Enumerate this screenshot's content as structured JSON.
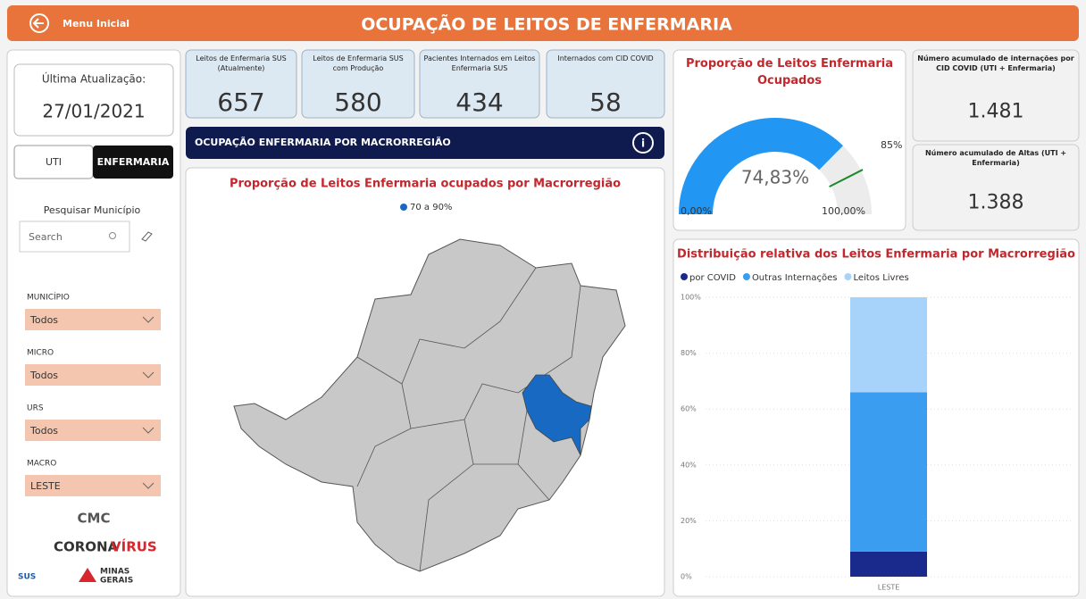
{
  "header": {
    "back": "Menu Inicial",
    "title": "OCUPAÇÃO DE LEITOS DE ENFERMARIA"
  },
  "sidebar": {
    "update_label": "Última Atualização:",
    "update_date": "27/01/2021",
    "tabs": [
      "UTI",
      "ENFERMARIA"
    ],
    "search_label": "Pesquisar Município",
    "search_placeholder": "Search",
    "filters": [
      {
        "label": "MUNICÍPIO",
        "value": "Todos"
      },
      {
        "label": "MICRO",
        "value": "Todos"
      },
      {
        "label": "URS",
        "value": "Todos"
      },
      {
        "label": "MACRO",
        "value": "LESTE"
      }
    ],
    "logos": [
      "CMC",
      "CORONA",
      "VÍRUS",
      "SUS",
      "MINAS",
      "GERAIS"
    ]
  },
  "kpis": [
    {
      "label": "Leitos de Enfermaria SUS (Atualmente)",
      "value": 657
    },
    {
      "label": "Leitos de Enfermaria SUS com Produção",
      "value": 580
    },
    {
      "label": "Pacientes Internados em Leitos Enfermaria SUS",
      "value": 434
    },
    {
      "label": "Internados com CID COVID",
      "value": 58
    }
  ],
  "section_banner": "OCUPAÇÃO ENFERMARIA POR MACRORREGIÃO",
  "map": {
    "title": "Proporção de Leitos Enfermaria ocupados por Macrorregião",
    "legend": "70 a 90%",
    "color": "#1769c2"
  },
  "gauge": {
    "type": "gauge",
    "title": "Proporção de Leitos Enfermaria Ocupados",
    "value": 74.83,
    "value_label": "74,83%",
    "min": {
      "value": 0,
      "label": "0,00%"
    },
    "max": {
      "value": 100,
      "label": "100,00%"
    },
    "target": {
      "value": 85,
      "label": "85%"
    },
    "color": "#2196f3"
  },
  "side_kpis": [
    {
      "label": "Número acumulado de internações por CID COVID (UTI + Enfermaria)",
      "value": "1.481"
    },
    {
      "label": "Número acumulado de Altas (UTI + Enfermaria)",
      "value": "1.388"
    }
  ],
  "chart_data": {
    "type": "bar",
    "stacked": true,
    "title": "Distribuição relativa dos Leitos Enfermaria por Macrorregião",
    "categories": [
      "LESTE"
    ],
    "series": [
      {
        "name": "por COVID",
        "color": "#1a2a8c",
        "values": [
          9
        ]
      },
      {
        "name": "Outras Internações",
        "color": "#3a9df0",
        "values": [
          57
        ]
      },
      {
        "name": "Leitos Livres",
        "color": "#a7d3fb",
        "values": [
          34
        ]
      }
    ],
    "ylim": [
      0,
      100
    ],
    "yticks": [
      {
        "value": 0,
        "label": "0%"
      },
      {
        "value": 20,
        "label": "20%"
      },
      {
        "value": 40,
        "label": "40%"
      },
      {
        "value": 60,
        "label": "60%"
      },
      {
        "value": 80,
        "label": "80%"
      },
      {
        "value": 100,
        "label": "100%"
      }
    ],
    "grid": true
  }
}
